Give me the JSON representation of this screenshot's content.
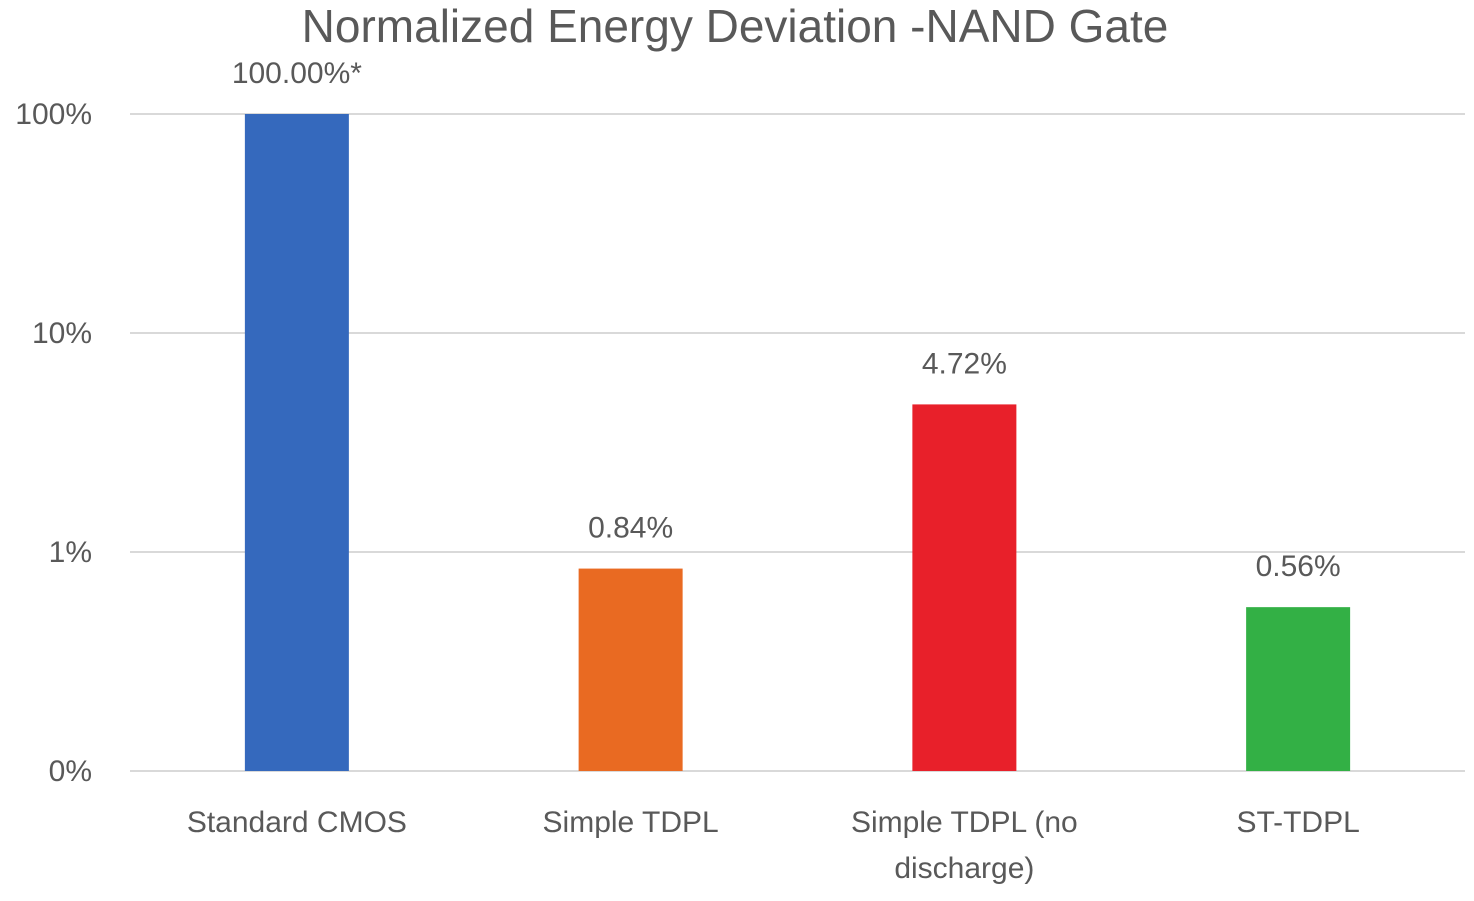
{
  "chart_data": {
    "type": "bar",
    "title": "Normalized Energy Deviation -NAND Gate",
    "yscale": "log",
    "ytick_values": [
      0.1,
      1,
      10,
      100
    ],
    "ytick_labels": [
      "0%",
      "1%",
      "10%",
      "100%"
    ],
    "ylim": [
      0.1,
      100
    ],
    "grid": true,
    "categories": [
      [
        "Standard CMOS"
      ],
      [
        "Simple TDPL"
      ],
      [
        "Simple TDPL (no",
        "discharge)"
      ],
      [
        "ST-TDPL"
      ]
    ],
    "values": [
      100,
      0.84,
      4.72,
      0.56
    ],
    "data_labels": [
      "100.00%*",
      "0.84%",
      "4.72%",
      "0.56%"
    ],
    "colors": [
      "#3569bd",
      "#e96a22",
      "#e8202a",
      "#33b045"
    ]
  }
}
